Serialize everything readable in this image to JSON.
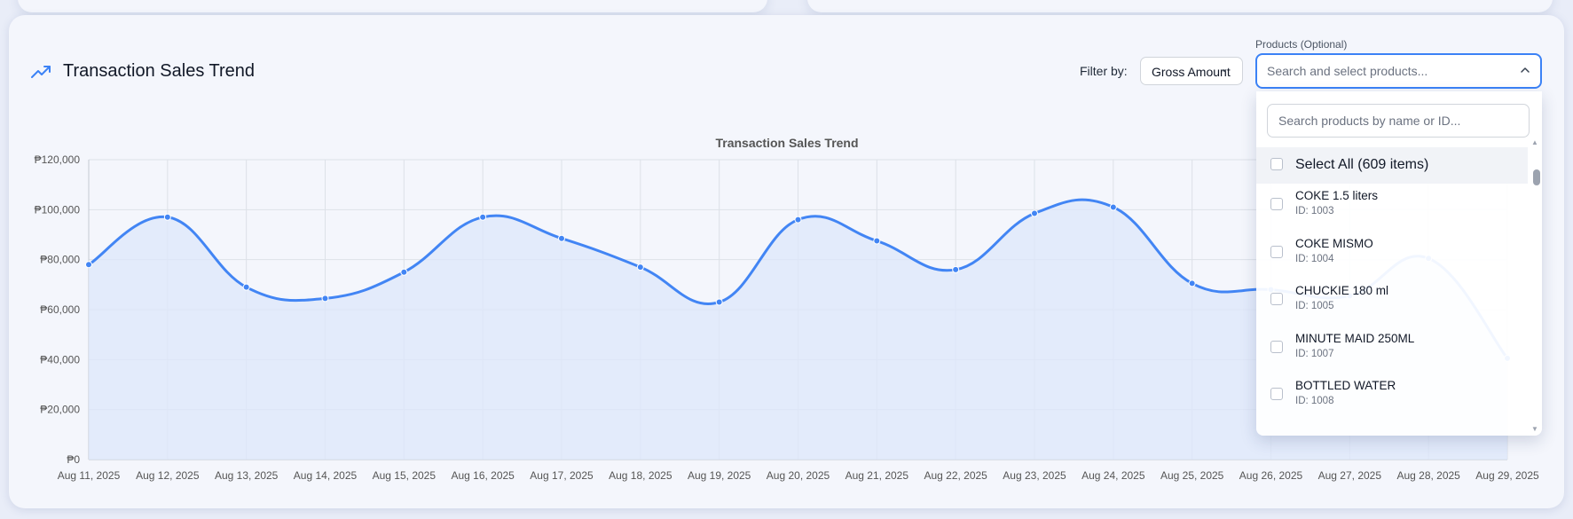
{
  "header": {
    "title": "Transaction Sales Trend",
    "icon": "trending-up-icon"
  },
  "filter": {
    "label": "Filter by:",
    "selected": "Gross Amount"
  },
  "products": {
    "label": "Products (Optional)",
    "placeholder": "Search and select products...",
    "search_placeholder": "Search products by name or ID...",
    "select_all": "Select All (609 items)",
    "items": [
      {
        "name": "COKE 1.5 liters",
        "id": "ID: 1003"
      },
      {
        "name": "COKE MISMO",
        "id": "ID: 1004"
      },
      {
        "name": "CHUCKIE 180 ml",
        "id": "ID: 1005"
      },
      {
        "name": "MINUTE MAID 250ML",
        "id": "ID: 1007"
      },
      {
        "name": "BOTTLED WATER",
        "id": "ID: 1008"
      }
    ]
  },
  "chart_data": {
    "type": "line",
    "title": "Transaction Sales Trend",
    "categories": [
      "Aug 11, 2025",
      "Aug 12, 2025",
      "Aug 13, 2025",
      "Aug 14, 2025",
      "Aug 15, 2025",
      "Aug 16, 2025",
      "Aug 17, 2025",
      "Aug 18, 2025",
      "Aug 19, 2025",
      "Aug 20, 2025",
      "Aug 21, 2025",
      "Aug 22, 2025",
      "Aug 23, 2025",
      "Aug 24, 2025",
      "Aug 25, 2025",
      "Aug 26, 2025",
      "Aug 27, 2025",
      "Aug 28, 2025",
      "Aug 29, 2025"
    ],
    "values": [
      78000,
      97000,
      69000,
      64500,
      75000,
      97000,
      88500,
      77000,
      63000,
      96000,
      87500,
      76000,
      98500,
      101000,
      70500,
      68000,
      65500,
      80500,
      40500
    ],
    "ylim": [
      0,
      120000
    ],
    "yticks": [
      0,
      20000,
      40000,
      60000,
      80000,
      100000,
      120000
    ],
    "ytick_labels": [
      "₱0",
      "₱20,000",
      "₱40,000",
      "₱60,000",
      "₱80,000",
      "₱100,000",
      "₱120,000"
    ],
    "line_color": "#4285f4",
    "fill_color": "#dde7fb",
    "grid": true,
    "xlabel": "",
    "ylabel": ""
  }
}
